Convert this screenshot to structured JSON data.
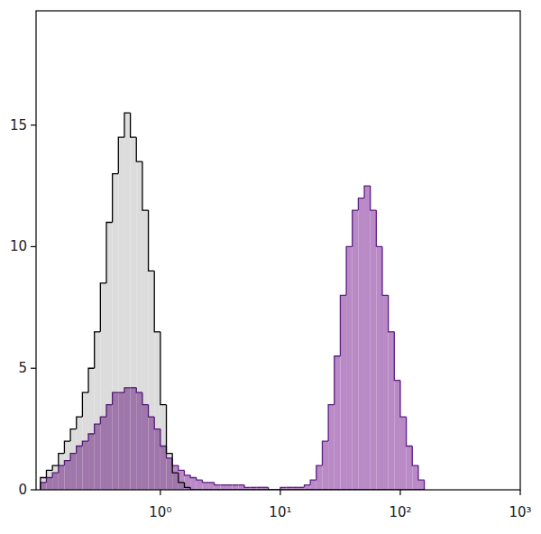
{
  "chart_data": {
    "type": "histogram",
    "log": "x",
    "grid": false,
    "xlim": [
      0.092,
      1000
    ],
    "ylim": [
      0,
      19.7
    ],
    "xticks": [
      {
        "value": 1,
        "label": "10⁰"
      },
      {
        "value": 10,
        "label": "10¹"
      },
      {
        "value": 100,
        "label": "10²"
      },
      {
        "value": 1000,
        "label": "10³"
      }
    ],
    "yticks": [
      0,
      5,
      10,
      15
    ],
    "bins": [
      0.1,
      0.1122,
      0.1259,
      0.1413,
      0.1585,
      0.1778,
      0.1995,
      0.2239,
      0.2512,
      0.2818,
      0.3162,
      0.3548,
      0.3981,
      0.4467,
      0.5012,
      0.5623,
      0.631,
      0.7079,
      0.7943,
      0.8913,
      1,
      1.122,
      1.259,
      1.413,
      1.585,
      1.778,
      1.995,
      2.239,
      2.512,
      2.818,
      3.162,
      3.548,
      3.981,
      4.467,
      5.012,
      5.623,
      6.31,
      7.079,
      7.943,
      8.913,
      10,
      11.22,
      12.59,
      14.13,
      15.85,
      17.78,
      19.95,
      22.39,
      25.12,
      28.18,
      31.62,
      35.48,
      39.81,
      44.67,
      50.12,
      56.23,
      63.1,
      70.79,
      79.43,
      89.13,
      100,
      112.2,
      125.9,
      141.3,
      158.5
    ],
    "series": [
      {
        "color": "#dcdcdc",
        "values": [
          0.5,
          0.8,
          1,
          1.5,
          2,
          2.5,
          3,
          4,
          5,
          6.5,
          8.5,
          11,
          13,
          14.5,
          15.5,
          14.5,
          13.5,
          11.5,
          9,
          6.5,
          3.5,
          1.5,
          0.7,
          0.3,
          0.1,
          0,
          0,
          0,
          0,
          0,
          0,
          0,
          0,
          0,
          0,
          0,
          0,
          0,
          0,
          0,
          0,
          0,
          0,
          0,
          0,
          0,
          0,
          0,
          0,
          0,
          0,
          0,
          0,
          0,
          0,
          0,
          0,
          0,
          0,
          0,
          0,
          0,
          0,
          0
        ]
      },
      {
        "color": "#b98ac6",
        "values": [
          0.3,
          0.5,
          0.7,
          1,
          1.2,
          1.5,
          1.8,
          2,
          2.3,
          2.7,
          3,
          3.5,
          4,
          4,
          4.2,
          4.2,
          4,
          3.5,
          3,
          2.5,
          1.8,
          1.3,
          1,
          0.8,
          0.6,
          0.5,
          0.4,
          0.3,
          0.3,
          0.2,
          0.2,
          0.2,
          0.2,
          0.2,
          0.1,
          0.1,
          0.1,
          0.1,
          0,
          0,
          0.1,
          0.1,
          0.1,
          0.1,
          0.2,
          0.4,
          1,
          2,
          3.5,
          5.5,
          8,
          10,
          11.5,
          12,
          12.5,
          11.5,
          10,
          8,
          6.5,
          4.5,
          3,
          1.8,
          1,
          0.4
        ]
      }
    ]
  }
}
